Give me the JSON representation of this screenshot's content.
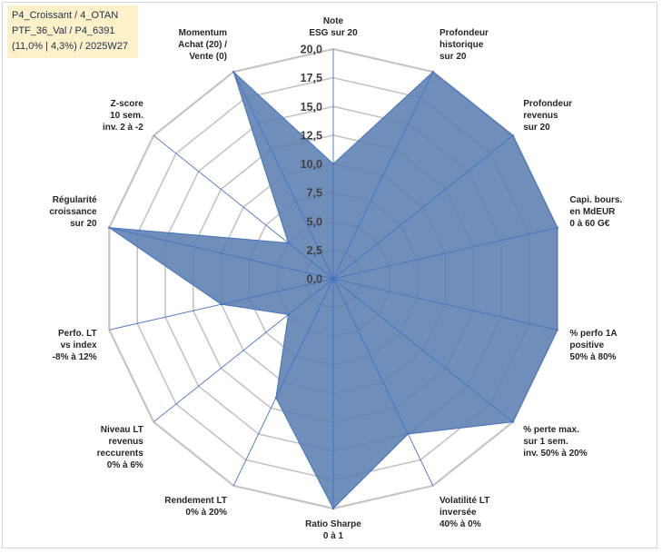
{
  "info_box": {
    "line1": "P4_Croissant / 4_OTAN",
    "line2": "PTF_36_Val / P4_6391",
    "line3": "(11,0% | 4,3%) / 2025W27"
  },
  "colors": {
    "fill": "#5b7fb0",
    "series_stroke": "#4472c4",
    "grid": "#c4c4c4",
    "spoke": "#4472c4"
  },
  "chart_data": {
    "type": "radar",
    "r_range": [
      0,
      20
    ],
    "r_step": 2.5,
    "grid": true,
    "legend": "none",
    "tick_labels": [
      "0,0",
      "2,5",
      "5,0",
      "7,5",
      "10,0",
      "12,5",
      "15,0",
      "17,5",
      "20,0"
    ],
    "axes": [
      {
        "label": [
          "Note",
          "ESG sur 20"
        ]
      },
      {
        "label": [
          "Profondeur",
          "historique",
          "sur 20"
        ]
      },
      {
        "label": [
          "Profondeur",
          "revenus",
          "sur 20"
        ]
      },
      {
        "label": [
          "Capi. bours.",
          "en MdEUR",
          "0 à 60 G€"
        ]
      },
      {
        "label": [
          "% perfo 1A",
          "positive",
          "50% à 80%"
        ]
      },
      {
        "label": [
          "% perte max.",
          "sur 1 sem.",
          "inv. 50% à 20%"
        ]
      },
      {
        "label": [
          "Volatilité LT",
          "inversée",
          "40% à 0%"
        ]
      },
      {
        "label": [
          "Ratio Sharpe",
          "0 à 1"
        ]
      },
      {
        "label": [
          "Rendement LT",
          "0% à 20%"
        ]
      },
      {
        "label": [
          "Niveau LT",
          "revenus",
          "reccurents",
          "0% à 6%"
        ]
      },
      {
        "label": [
          "Perfo. LT",
          "vs index",
          "-8% à 12%"
        ]
      },
      {
        "label": [
          "Régularité",
          "croissance",
          "sur 20"
        ]
      },
      {
        "label": [
          "Z-score",
          "10 sem.",
          "inv. 2 à -2"
        ]
      },
      {
        "label": [
          "Momentum",
          "Achat (20) /",
          "Vente (0)"
        ]
      }
    ],
    "series": [
      {
        "values": [
          10.0,
          20.0,
          20.0,
          20.0,
          20.0,
          20.0,
          15.0,
          20.0,
          11.5,
          5.0,
          10.0,
          20.0,
          5.0,
          20.0
        ]
      }
    ]
  }
}
